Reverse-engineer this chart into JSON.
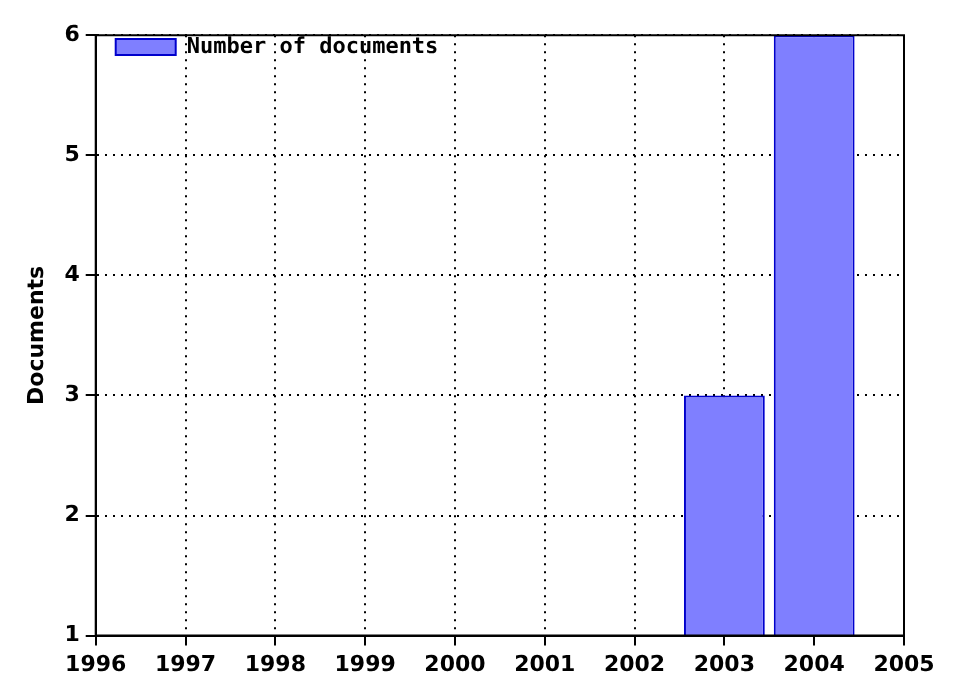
{
  "chart_data": {
    "type": "bar",
    "ylabel": "Documents",
    "x": [
      2003,
      2004
    ],
    "series": [
      {
        "name": "Number of documents",
        "color": "#7f7fff",
        "values": [
          3,
          6
        ]
      }
    ],
    "xlim": [
      1996,
      2005
    ],
    "xticks": [
      1996,
      1997,
      1998,
      1999,
      2000,
      2001,
      2002,
      2003,
      2004,
      2005
    ],
    "ylim": [
      1,
      6
    ],
    "yticks": [
      1,
      2,
      3,
      4,
      5,
      6
    ],
    "grid": true,
    "legend": "top left"
  }
}
